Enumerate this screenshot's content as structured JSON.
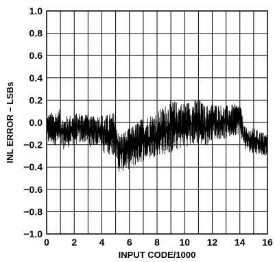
{
  "chart_data": {
    "type": "line",
    "title": "",
    "xlabel": "INPUT CODE/1000",
    "ylabel": "INL ERROR – LSBs",
    "xlim": [
      0,
      16
    ],
    "ylim": [
      -1.0,
      1.0
    ],
    "grid": true,
    "x_ticks": [
      0,
      1,
      2,
      3,
      4,
      5,
      6,
      7,
      8,
      9,
      10,
      11,
      12,
      13,
      14,
      15,
      16
    ],
    "x_tick_labels": [
      "0",
      "",
      "2",
      "",
      "4",
      "",
      "6",
      "",
      "8",
      "",
      "10",
      "",
      "12",
      "",
      "14",
      "",
      "16"
    ],
    "y_ticks": [
      -1.0,
      -0.8,
      -0.6,
      -0.4,
      -0.2,
      0.0,
      0.2,
      0.4,
      0.6,
      0.8,
      1.0
    ],
    "y_tick_labels": [
      "−1.0",
      "−0.8",
      "−0.6",
      "−0.4",
      "−0.2",
      "0.0",
      "0.2",
      "0.4",
      "0.6",
      "0.8",
      "1.0"
    ],
    "series": [
      {
        "color": "#000000",
        "envelope": {
          "x": [
            0,
            0.5,
            1.0,
            1.1,
            2.0,
            3.0,
            3.1,
            4.0,
            4.1,
            5.0,
            5.2,
            6.0,
            7.0,
            8.0,
            9.0,
            10.0,
            11.0,
            11.5,
            12.0,
            13.0,
            14.0,
            14.4,
            15.0,
            16.0
          ],
          "upper": [
            0.08,
            0.1,
            0.12,
            0.05,
            0.08,
            0.1,
            0.05,
            0.08,
            0.06,
            0.1,
            -0.1,
            -0.05,
            0.05,
            0.1,
            0.2,
            0.18,
            0.22,
            0.15,
            0.18,
            0.15,
            0.18,
            -0.05,
            -0.05,
            -0.1
          ],
          "lower": [
            -0.2,
            -0.2,
            -0.22,
            -0.25,
            -0.2,
            -0.18,
            -0.22,
            -0.2,
            -0.28,
            -0.3,
            -0.45,
            -0.42,
            -0.35,
            -0.3,
            -0.28,
            -0.22,
            -0.2,
            -0.22,
            -0.15,
            -0.15,
            -0.1,
            -0.25,
            -0.28,
            -0.3
          ]
        }
      }
    ]
  }
}
